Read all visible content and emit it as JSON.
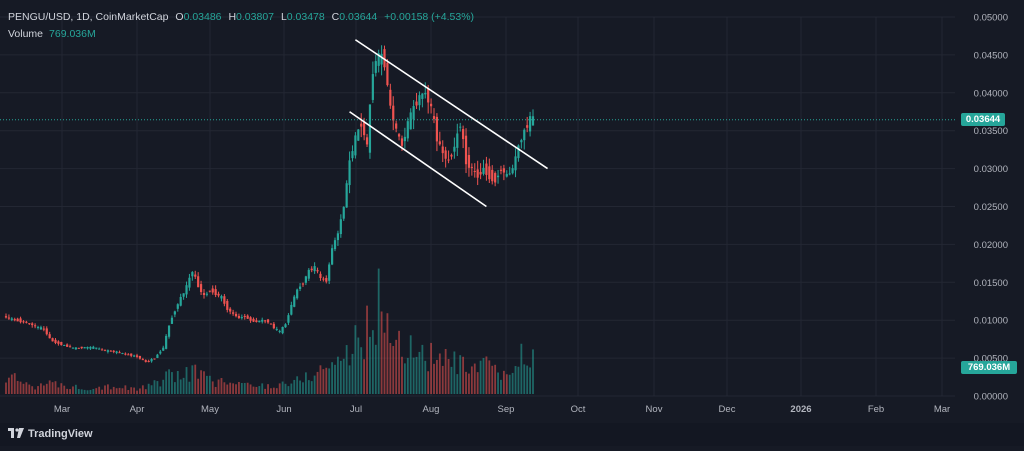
{
  "legend": {
    "symbol": "PENGU/USD, 1D, CoinMarketCap",
    "o_label": "O",
    "o_value": "0.03486",
    "h_label": "H",
    "h_value": "0.03807",
    "l_label": "L",
    "l_value": "0.03478",
    "c_label": "C",
    "c_value": "0.03644",
    "change": "+0.00158 (+4.53%)",
    "volume_label": "Volume",
    "volume_value": "769.036M"
  },
  "badges": {
    "price": "0.03644",
    "volume": "769.036M"
  },
  "footer": {
    "brand": "TradingView"
  },
  "colors": {
    "up": "#26a69a",
    "down": "#ef5350",
    "background": "#161a25",
    "grid": "#232733",
    "channel": "#ffffff"
  },
  "chart_data": {
    "type": "candlestick",
    "title": "PENGU/USD, 1D, CoinMarketCap",
    "y_ticks": [
      "0.05000",
      "0.04500",
      "0.04000",
      "0.03500",
      "0.03000",
      "0.02500",
      "0.02000",
      "0.01500",
      "0.01000",
      "0.00500",
      "0.00000"
    ],
    "ylim": [
      0,
      0.05
    ],
    "x_ticks": [
      "Mar",
      "Apr",
      "May",
      "Jun",
      "Jul",
      "Aug",
      "Sep",
      "Oct",
      "Nov",
      "Dec",
      "2026",
      "Feb",
      "Mar"
    ],
    "last_price": 0.03644,
    "last_volume": "769.036M",
    "price_path": [
      [
        0,
        0.0105
      ],
      [
        8,
        0.01
      ],
      [
        15,
        0.0098
      ],
      [
        22,
        0.0092
      ],
      [
        28,
        0.0088
      ],
      [
        33,
        0.0073
      ],
      [
        40,
        0.0068
      ],
      [
        48,
        0.0063
      ],
      [
        55,
        0.0064
      ],
      [
        62,
        0.0064
      ],
      [
        70,
        0.006
      ],
      [
        78,
        0.0058
      ],
      [
        85,
        0.0055
      ],
      [
        92,
        0.0052
      ],
      [
        98,
        0.0045
      ],
      [
        104,
        0.005
      ],
      [
        110,
        0.0064
      ],
      [
        115,
        0.01
      ],
      [
        120,
        0.0122
      ],
      [
        125,
        0.014
      ],
      [
        130,
        0.0165
      ],
      [
        134,
        0.0145
      ],
      [
        138,
        0.0132
      ],
      [
        142,
        0.014
      ],
      [
        146,
        0.0135
      ],
      [
        150,
        0.013
      ],
      [
        154,
        0.0115
      ],
      [
        158,
        0.0108
      ],
      [
        162,
        0.0103
      ],
      [
        166,
        0.0105
      ],
      [
        170,
        0.01
      ],
      [
        174,
        0.0098
      ],
      [
        178,
        0.01
      ],
      [
        182,
        0.0098
      ],
      [
        186,
        0.009
      ],
      [
        190,
        0.0085
      ],
      [
        194,
        0.0095
      ],
      [
        198,
        0.012
      ],
      [
        202,
        0.014
      ],
      [
        206,
        0.015
      ],
      [
        210,
        0.0165
      ],
      [
        214,
        0.017
      ],
      [
        218,
        0.0155
      ],
      [
        222,
        0.0152
      ],
      [
        226,
        0.0195
      ],
      [
        230,
        0.0215
      ],
      [
        234,
        0.025
      ],
      [
        238,
        0.031
      ],
      [
        242,
        0.034
      ],
      [
        246,
        0.036
      ],
      [
        250,
        0.033
      ],
      [
        254,
        0.043
      ],
      [
        258,
        0.045
      ],
      [
        262,
        0.044
      ],
      [
        266,
        0.038
      ],
      [
        270,
        0.035
      ],
      [
        274,
        0.033
      ],
      [
        278,
        0.036
      ],
      [
        282,
        0.038
      ],
      [
        286,
        0.0395
      ],
      [
        290,
        0.04
      ],
      [
        294,
        0.038
      ],
      [
        298,
        0.034
      ],
      [
        302,
        0.032
      ],
      [
        306,
        0.031
      ],
      [
        310,
        0.033
      ],
      [
        314,
        0.036
      ],
      [
        318,
        0.031
      ],
      [
        322,
        0.03
      ],
      [
        326,
        0.029
      ],
      [
        330,
        0.03
      ],
      [
        334,
        0.029
      ],
      [
        338,
        0.0285
      ],
      [
        342,
        0.03
      ],
      [
        346,
        0.029
      ],
      [
        350,
        0.03
      ],
      [
        354,
        0.033
      ],
      [
        358,
        0.035
      ],
      [
        362,
        0.0365
      ]
    ],
    "volume_path": [
      [
        0,
        0.1
      ],
      [
        10,
        0.08
      ],
      [
        20,
        0.05
      ],
      [
        30,
        0.06
      ],
      [
        40,
        0.05
      ],
      [
        50,
        0.04
      ],
      [
        60,
        0.04
      ],
      [
        70,
        0.05
      ],
      [
        80,
        0.04
      ],
      [
        90,
        0.03
      ],
      [
        100,
        0.05
      ],
      [
        110,
        0.1
      ],
      [
        120,
        0.12
      ],
      [
        130,
        0.14
      ],
      [
        140,
        0.08
      ],
      [
        150,
        0.07
      ],
      [
        160,
        0.06
      ],
      [
        170,
        0.05
      ],
      [
        180,
        0.05
      ],
      [
        190,
        0.06
      ],
      [
        200,
        0.08
      ],
      [
        210,
        0.12
      ],
      [
        220,
        0.16
      ],
      [
        230,
        0.22
      ],
      [
        240,
        0.3
      ],
      [
        250,
        0.4
      ],
      [
        255,
        0.55
      ],
      [
        260,
        0.48
      ],
      [
        265,
        0.38
      ],
      [
        270,
        0.3
      ],
      [
        280,
        0.26
      ],
      [
        290,
        0.24
      ],
      [
        300,
        0.2
      ],
      [
        310,
        0.18
      ],
      [
        320,
        0.14
      ],
      [
        330,
        0.16
      ],
      [
        340,
        0.12
      ],
      [
        350,
        0.14
      ],
      [
        356,
        0.28
      ],
      [
        362,
        0.22
      ]
    ],
    "channel_upper": [
      [
        240,
        0.047
      ],
      [
        330,
        0.0365
      ],
      [
        372,
        0.03
      ]
    ],
    "channel_lower": [
      [
        236,
        0.0375
      ],
      [
        330,
        0.025
      ]
    ]
  }
}
